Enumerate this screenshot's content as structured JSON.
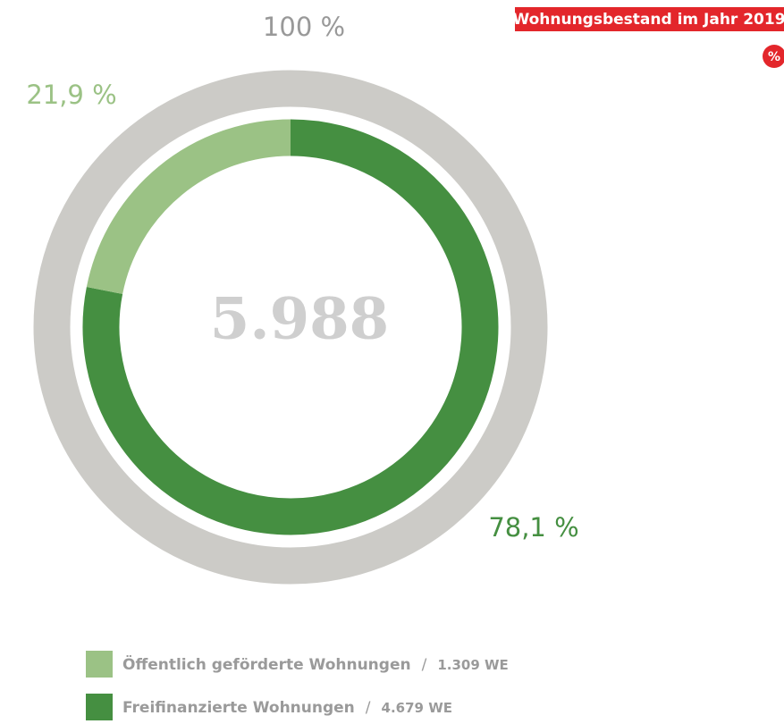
{
  "chart_data": {
    "type": "donut",
    "title": "Wohnungsbestand im Jahr 2019",
    "badge": "%",
    "total_label": "5.988",
    "ring_total": 100,
    "ring_total_label": "100 %",
    "categories": [
      "Öffentlich geförderte Wohnungen",
      "Freifinanzierte Wohnungen"
    ],
    "values": [
      21.9,
      78.1
    ],
    "value_labels": [
      "21,9 %",
      "78,1 %"
    ],
    "colors": [
      "#9bc285",
      "#458f41"
    ],
    "ring_color": "#cccbc7",
    "legend_separator": "/",
    "count_labels": [
      "1.309 WE",
      "4.679 WE"
    ]
  }
}
